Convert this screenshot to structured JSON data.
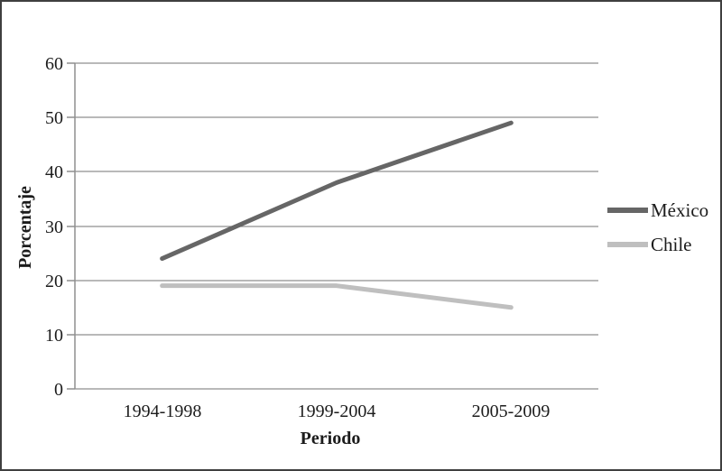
{
  "figure": {
    "background": "#ffffff",
    "border_color": "#3f3f3f"
  },
  "chart_data": {
    "type": "line",
    "title": "",
    "xlabel": "Periodo",
    "ylabel": "Porcentaje",
    "categories": [
      "1994-1998",
      "1999-2004",
      "2005-2009"
    ],
    "series": [
      {
        "name": "México",
        "values": [
          24,
          38,
          49
        ],
        "color": "#666666"
      },
      {
        "name": "Chile",
        "values": [
          19,
          19,
          15
        ],
        "color": "#bfbfbf"
      }
    ],
    "ylim": [
      0,
      60
    ],
    "y_step": 10,
    "y_ticks": [
      "60",
      "50",
      "40",
      "30",
      "20",
      "10",
      "0"
    ],
    "grid": "horizontal-only",
    "gridline_color": "#8f8f8f",
    "legend_position": "right-middle",
    "text_color": "#1c1c1c"
  }
}
